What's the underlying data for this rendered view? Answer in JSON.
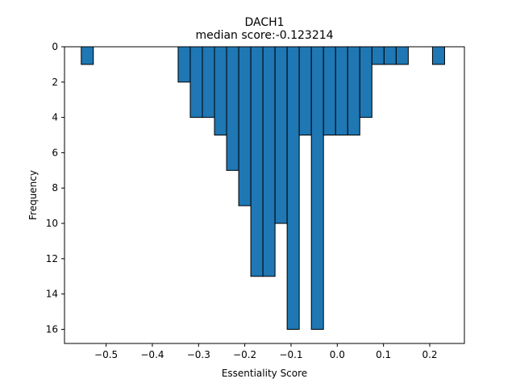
{
  "chart_data": {
    "type": "bar",
    "title": "DACH1",
    "subtitle": "median score:-0.123214",
    "xlabel": "Essentiality Score",
    "ylabel": "Frequency",
    "xlim": [
      -0.59,
      0.275
    ],
    "ylim": [
      16.8,
      0
    ],
    "y_inverted": true,
    "grid": false,
    "bar_color": "#1f77b4",
    "edge_color": "#000000",
    "bin_width": 0.0262,
    "bins": [
      {
        "x0": -0.5538,
        "count": 1
      },
      {
        "x0": -0.3442,
        "count": 2
      },
      {
        "x0": -0.318,
        "count": 4
      },
      {
        "x0": -0.2918,
        "count": 4
      },
      {
        "x0": -0.2656,
        "count": 5
      },
      {
        "x0": -0.2394,
        "count": 7
      },
      {
        "x0": -0.2132,
        "count": 9
      },
      {
        "x0": -0.187,
        "count": 13
      },
      {
        "x0": -0.1608,
        "count": 13
      },
      {
        "x0": -0.1346,
        "count": 10
      },
      {
        "x0": -0.1084,
        "count": 16
      },
      {
        "x0": -0.0822,
        "count": 5
      },
      {
        "x0": -0.056,
        "count": 16
      },
      {
        "x0": -0.0298,
        "count": 5
      },
      {
        "x0": -0.0036,
        "count": 5
      },
      {
        "x0": 0.0226,
        "count": 5
      },
      {
        "x0": 0.0488,
        "count": 4
      },
      {
        "x0": 0.075,
        "count": 1
      },
      {
        "x0": 0.1012,
        "count": 1
      },
      {
        "x0": 0.1274,
        "count": 1
      },
      {
        "x0": 0.206,
        "count": 1
      }
    ],
    "x_ticks": [
      {
        "value": -0.5,
        "label": "−0.5"
      },
      {
        "value": -0.4,
        "label": "−0.4"
      },
      {
        "value": -0.3,
        "label": "−0.3"
      },
      {
        "value": -0.2,
        "label": "−0.2"
      },
      {
        "value": -0.1,
        "label": "−0.1"
      },
      {
        "value": 0.0,
        "label": "0.0"
      },
      {
        "value": 0.1,
        "label": "0.1"
      },
      {
        "value": 0.2,
        "label": "0.2"
      }
    ],
    "y_ticks": [
      {
        "value": 0,
        "label": "0"
      },
      {
        "value": 2,
        "label": "2"
      },
      {
        "value": 4,
        "label": "4"
      },
      {
        "value": 6,
        "label": "6"
      },
      {
        "value": 8,
        "label": "8"
      },
      {
        "value": 10,
        "label": "10"
      },
      {
        "value": 12,
        "label": "12"
      },
      {
        "value": 14,
        "label": "14"
      },
      {
        "value": 16,
        "label": "16"
      }
    ]
  }
}
